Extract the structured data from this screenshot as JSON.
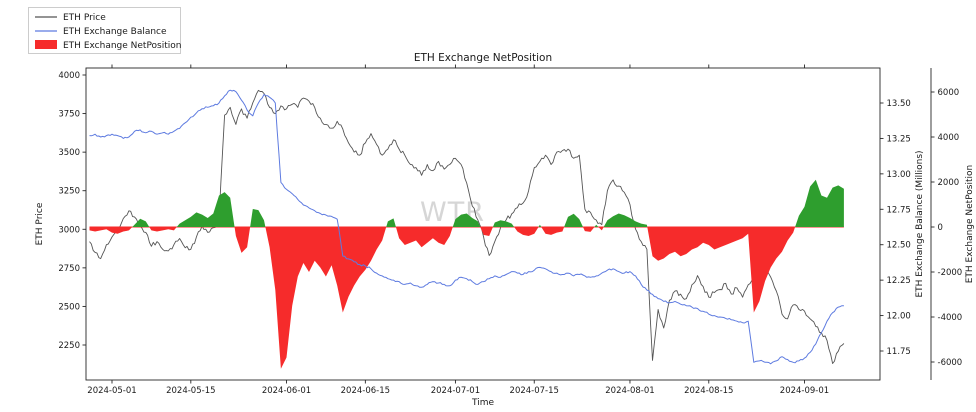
{
  "title": "ETH Exchange NetPosition",
  "watermark": "WTR",
  "legend": {
    "items": [
      {
        "label": "ETH Price",
        "marker": "line",
        "color": "#555555"
      },
      {
        "label": "ETH Exchange Balance",
        "marker": "line",
        "color": "#5e7be0"
      },
      {
        "label": "ETH Exchange NetPosition",
        "marker": "patch",
        "color": "#f62b2b"
      }
    ]
  },
  "axes": {
    "x": {
      "label": "Time",
      "tick_labels": [
        "2024-05-01",
        "2024-05-15",
        "2024-06-01",
        "2024-06-15",
        "2024-07-01",
        "2024-07-15",
        "2024-08-01",
        "2024-08-15",
        "2024-09-01"
      ]
    },
    "y_left": {
      "label": "ETH Price",
      "tick_labels": [
        "2250",
        "2500",
        "2750",
        "3000",
        "3250",
        "3500",
        "3750",
        "4000"
      ]
    },
    "y_right_balance": {
      "label": "ETH Exchange Balance (Millions)",
      "tick_labels": [
        "11.75",
        "12.00",
        "12.25",
        "12.50",
        "12.75",
        "13.00",
        "13.25",
        "13.50"
      ]
    },
    "y_right_netpos": {
      "label": "ETH Exchange NetPosition",
      "tick_labels": [
        "-6000",
        "-4000",
        "-2000",
        "0",
        "2000",
        "4000",
        "6000"
      ]
    }
  },
  "chart_data": {
    "type": "line",
    "title": "ETH Exchange NetPosition",
    "legend_position": "upper-left-outside",
    "grid": false,
    "x_axis": {
      "label": "Time",
      "start_date": "2024-04-27",
      "step_days": 1,
      "tick_labels": [
        "2024-05-01",
        "2024-05-15",
        "2024-06-01",
        "2024-06-15",
        "2024-07-01",
        "2024-07-15",
        "2024-08-01",
        "2024-08-15",
        "2024-09-01"
      ]
    },
    "axes_ranges": {
      "price": {
        "min": 2250,
        "max": 4000,
        "ticks": [
          2250,
          2500,
          2750,
          3000,
          3250,
          3500,
          3750,
          4000
        ]
      },
      "balance": {
        "min": 11.75,
        "max": 13.5,
        "ticks": [
          11.75,
          12.0,
          12.25,
          12.5,
          12.75,
          13.0,
          13.25,
          13.5
        ]
      },
      "netposition": {
        "min": -6000,
        "max": 6000,
        "ticks": [
          -6000,
          -4000,
          -2000,
          0,
          2000,
          4000,
          6000
        ]
      }
    },
    "series": [
      {
        "name": "ETH Price",
        "style": "line",
        "color": "#555555",
        "axis": "price",
        "values": [
          2920,
          2850,
          2810,
          2900,
          2950,
          3000,
          3070,
          3120,
          3080,
          3020,
          2980,
          2890,
          2920,
          2870,
          2860,
          2900,
          2940,
          2880,
          2870,
          2950,
          3020,
          2980,
          3010,
          3060,
          3740,
          3790,
          3680,
          3780,
          3720,
          3820,
          3900,
          3880,
          3790,
          3750,
          3800,
          3780,
          3810,
          3790,
          3850,
          3830,
          3790,
          3720,
          3680,
          3655,
          3700,
          3650,
          3560,
          3500,
          3480,
          3560,
          3620,
          3550,
          3480,
          3520,
          3580,
          3520,
          3480,
          3420,
          3400,
          3350,
          3420,
          3380,
          3440,
          3390,
          3420,
          3460,
          3420,
          3300,
          3150,
          3060,
          2950,
          2830,
          2920,
          3010,
          3060,
          3100,
          3140,
          3170,
          3250,
          3400,
          3440,
          3480,
          3420,
          3500,
          3510,
          3520,
          3460,
          3480,
          3130,
          3110,
          3060,
          3030,
          3250,
          3320,
          3280,
          3240,
          3160,
          3000,
          2920,
          2870,
          2150,
          2480,
          2360,
          2540,
          2600,
          2580,
          2550,
          2640,
          2700,
          2630,
          2560,
          2590,
          2610,
          2650,
          2580,
          2620,
          2560,
          2640,
          2700,
          2740,
          2750,
          2690,
          2600,
          2450,
          2420,
          2510,
          2480,
          2470,
          2420,
          2370,
          2330,
          2280,
          2130,
          2210,
          2260
        ]
      },
      {
        "name": "ETH Exchange Balance",
        "style": "line",
        "color": "#5e7be0",
        "axis": "balance",
        "values": [
          13.27,
          13.28,
          13.26,
          13.27,
          13.28,
          13.27,
          13.25,
          13.26,
          13.3,
          13.31,
          13.29,
          13.3,
          13.28,
          13.29,
          13.28,
          13.3,
          13.32,
          13.36,
          13.4,
          13.43,
          13.46,
          13.47,
          13.48,
          13.5,
          13.55,
          13.59,
          13.58,
          13.52,
          13.45,
          13.41,
          13.5,
          13.56,
          13.54,
          13.5,
          12.94,
          12.89,
          12.86,
          12.82,
          12.78,
          12.76,
          12.74,
          12.72,
          12.71,
          12.7,
          12.68,
          12.42,
          12.4,
          12.38,
          12.36,
          12.35,
          12.33,
          12.3,
          12.28,
          12.26,
          12.25,
          12.24,
          12.22,
          12.23,
          12.21,
          12.2,
          12.22,
          12.24,
          12.23,
          12.22,
          12.21,
          12.25,
          12.27,
          12.26,
          12.24,
          12.22,
          12.24,
          12.26,
          12.28,
          12.27,
          12.29,
          12.31,
          12.3,
          12.29,
          12.31,
          12.32,
          12.34,
          12.33,
          12.31,
          12.3,
          12.29,
          12.3,
          12.28,
          12.29,
          12.28,
          12.27,
          12.28,
          12.3,
          12.32,
          12.33,
          12.31,
          12.3,
          12.31,
          12.28,
          12.22,
          12.18,
          12.15,
          12.12,
          12.1,
          12.09,
          12.1,
          12.08,
          12.07,
          12.06,
          12.05,
          12.03,
          12.01,
          12.0,
          11.99,
          11.98,
          11.97,
          11.96,
          11.95,
          11.96,
          11.67,
          11.68,
          11.67,
          11.66,
          11.68,
          11.71,
          11.69,
          11.67,
          11.68,
          11.7,
          11.74,
          11.8,
          11.88,
          11.96,
          12.02,
          12.06,
          12.07
        ]
      },
      {
        "name": "ETH Exchange NetPosition",
        "style": "area",
        "axis": "netposition",
        "colors": {
          "positive": "#2e9e2e",
          "negative": "#f62b2b"
        },
        "values": [
          -150,
          -200,
          -150,
          -100,
          -250,
          -300,
          -200,
          -150,
          100,
          370,
          250,
          -150,
          -200,
          -150,
          -100,
          -150,
          150,
          300,
          450,
          650,
          550,
          400,
          600,
          1400,
          1550,
          1300,
          -400,
          -1150,
          -900,
          800,
          750,
          300,
          -900,
          -2800,
          -6300,
          -5800,
          -3500,
          -2200,
          -1600,
          -2000,
          -1500,
          -1800,
          -2200,
          -1700,
          -2600,
          -3800,
          -3100,
          -2600,
          -2200,
          -1900,
          -1500,
          -1000,
          -600,
          250,
          380,
          -500,
          -800,
          -700,
          -600,
          -900,
          -700,
          -500,
          -700,
          -800,
          -400,
          350,
          550,
          600,
          400,
          250,
          -350,
          -400,
          200,
          300,
          250,
          150,
          -200,
          -350,
          -400,
          -300,
          100,
          -300,
          -350,
          -250,
          -200,
          450,
          590,
          350,
          -180,
          -220,
          100,
          -150,
          300,
          480,
          600,
          520,
          400,
          250,
          150,
          100,
          -1300,
          -1500,
          -1400,
          -1200,
          -1100,
          -1300,
          -1200,
          -1000,
          -900,
          -700,
          -800,
          -1000,
          -900,
          -800,
          -700,
          -600,
          -500,
          -300,
          -3800,
          -3300,
          -2400,
          -1800,
          -1400,
          -1100,
          -600,
          -250,
          500,
          900,
          1800,
          2100,
          1400,
          1300,
          1750,
          1850,
          1700
        ]
      }
    ]
  }
}
